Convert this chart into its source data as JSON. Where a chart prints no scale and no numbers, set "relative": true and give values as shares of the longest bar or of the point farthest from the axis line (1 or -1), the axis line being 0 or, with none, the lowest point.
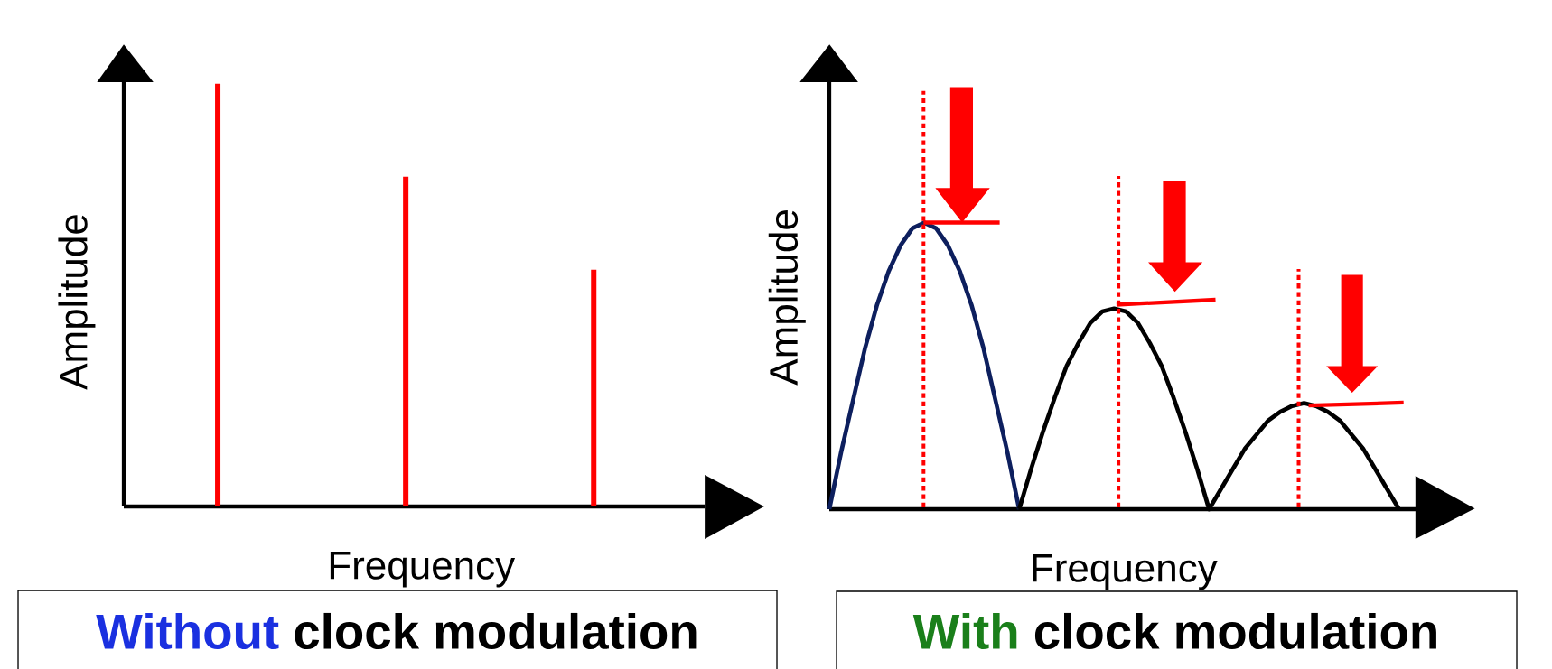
{
  "chart_data": [
    {
      "type": "bar",
      "relative": true,
      "categories": [
        null,
        null,
        null
      ],
      "values": [
        1,
        0.78,
        0.56
      ],
      "color": "#ff0000",
      "xlabel": "Frequency",
      "ylabel": "Amplitude",
      "annotations": [
        "Without",
        "clock modulation"
      ]
    },
    {
      "type": "line",
      "relative": true,
      "categories": [
        null,
        null,
        null,
        null,
        null,
        null,
        null,
        null,
        null,
        null,
        null,
        null,
        null,
        null,
        null,
        null,
        null,
        null,
        null,
        null,
        null,
        null,
        null,
        null,
        null,
        null,
        null,
        null,
        null,
        null,
        null,
        null,
        null,
        null,
        null,
        null,
        null,
        null,
        null,
        null,
        null,
        null,
        null,
        null,
        null,
        null,
        null,
        null,
        null
      ],
      "series": [
        {
          "color": "#0d1f5e",
          "values": [
            0,
            0.2,
            0.38,
            0.56,
            0.71,
            0.83,
            0.92,
            0.98,
            1,
            0.98,
            0.92,
            0.83,
            0.71,
            0.56,
            0.38,
            0.2,
            0,
            null,
            null,
            null,
            null,
            null,
            null,
            null,
            null,
            null,
            null,
            null,
            null,
            null,
            null,
            null,
            null,
            null,
            null,
            null,
            null,
            null,
            null,
            null,
            null,
            null,
            null,
            null,
            null,
            null,
            null,
            null,
            null
          ]
        },
        {
          "color": "#000000",
          "values": [
            null,
            null,
            null,
            null,
            null,
            null,
            null,
            null,
            null,
            null,
            null,
            null,
            null,
            null,
            null,
            null,
            0,
            0.14,
            0.27,
            0.39,
            0.5,
            0.58,
            0.65,
            0.69,
            0.7,
            0.69,
            0.65,
            0.58,
            0.5,
            0.39,
            0.27,
            0.14,
            0,
            0.07,
            0.14,
            0.21,
            0.26,
            0.31,
            0.34,
            0.36,
            0.37,
            0.36,
            0.34,
            0.31,
            0.26,
            0.21,
            0.14,
            0.07,
            0
          ]
        }
      ],
      "xlabel": "Frequency",
      "ylabel": "Amplitude",
      "annotations": [
        "With",
        "clock modulation"
      ]
    }
  ]
}
